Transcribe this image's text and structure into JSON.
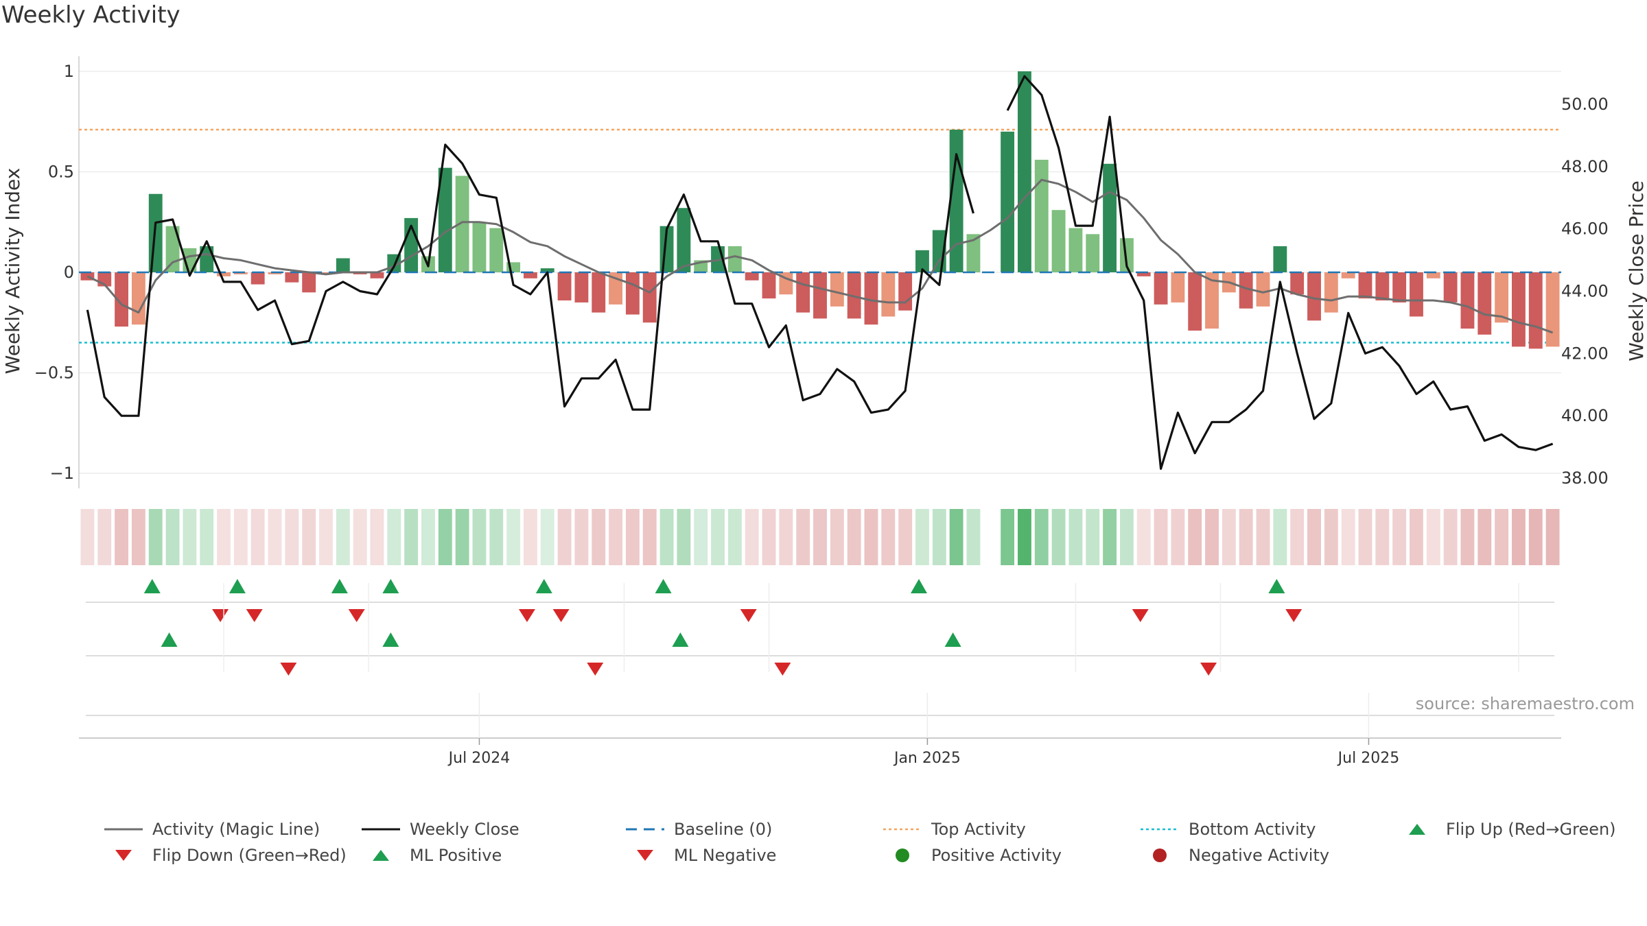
{
  "title": "Weekly Activity",
  "source": "source: sharemaestro.com",
  "colors": {
    "strong_green": "#2e8b57",
    "light_green": "#7fbf7f",
    "strong_red": "#cd5c5c",
    "light_red": "#e9967a",
    "magic_line": "#6e6e6e",
    "close_line": "#111111",
    "baseline": "#1f77b4",
    "top_line": "#f4a460",
    "bottom_line": "#17becf",
    "flip_up": "#1e9e50",
    "flip_down": "#d62728",
    "positive_dot": "#228b22",
    "negative_dot": "#b22222"
  },
  "legend": [
    {
      "label": "Activity (Magic Line)",
      "kind": "line-solid-gray"
    },
    {
      "label": "Weekly Close",
      "kind": "line-solid-black"
    },
    {
      "label": "Baseline (0)",
      "kind": "line-dash-blue"
    },
    {
      "label": "Top Activity",
      "kind": "line-dot-orange"
    },
    {
      "label": "Bottom Activity",
      "kind": "line-dot-cyan"
    },
    {
      "label": "Flip Up (Red→Green)",
      "kind": "triangle-up"
    },
    {
      "label": "Flip Down (Green→Red)",
      "kind": "triangle-down"
    },
    {
      "label": "ML Positive",
      "kind": "triangle-up"
    },
    {
      "label": "ML Negative",
      "kind": "triangle-down"
    },
    {
      "label": "Positive Activity",
      "kind": "dot-green"
    },
    {
      "label": "Negative Activity",
      "kind": "dot-red"
    }
  ],
  "chart_data": {
    "type": "bar",
    "title": "Weekly Activity",
    "ylabel": "Weekly Activity Index",
    "y2label": "Weekly Close Price",
    "ylim": [
      -1.1,
      1.0
    ],
    "y2lim": [
      37.7,
      51.6
    ],
    "yticks": [
      {
        "label": "1",
        "value": 1.0
      },
      {
        "label": "0.5",
        "value": 0.5
      },
      {
        "label": "0",
        "value": 0
      },
      {
        "label": "−0.5",
        "value": -0.5
      },
      {
        "label": "−1",
        "value": -1.0
      }
    ],
    "y2ticks": [
      {
        "label": "50.00",
        "value": 50
      },
      {
        "label": "48.00",
        "value": 48
      },
      {
        "label": "46.00",
        "value": 46
      },
      {
        "label": "44.00",
        "value": 44
      },
      {
        "label": "42.00",
        "value": 42
      },
      {
        "label": "40.00",
        "value": 40
      },
      {
        "label": "38.00",
        "value": 38
      }
    ],
    "xticks": [
      {
        "label": "Jul 2024",
        "week": 23.5
      },
      {
        "label": "Jan 2025",
        "week": 49.8
      },
      {
        "label": "Jul 2025",
        "week": 75.7
      }
    ],
    "top_activity": 0.71,
    "bottom_activity": -0.35,
    "activity": [
      -0.04,
      -0.07,
      -0.27,
      -0.26,
      0.39,
      0.23,
      0.12,
      0.13,
      -0.02,
      -0.01,
      -0.06,
      -0.01,
      -0.05,
      -0.1,
      -0.01,
      0.07,
      -0.01,
      -0.03,
      0.09,
      0.27,
      0.08,
      0.52,
      0.48,
      0.25,
      0.22,
      0.05,
      -0.03,
      0.02,
      -0.14,
      -0.15,
      -0.2,
      -0.16,
      -0.21,
      -0.25,
      0.23,
      0.32,
      0.06,
      0.13,
      0.13,
      -0.04,
      -0.13,
      -0.11,
      -0.2,
      -0.23,
      -0.17,
      -0.23,
      -0.26,
      -0.22,
      -0.19,
      0.11,
      0.21,
      0.71,
      0.19,
      null,
      0.7,
      1.0,
      0.56,
      0.31,
      0.22,
      0.19,
      0.54,
      0.17,
      -0.02,
      -0.16,
      -0.15,
      -0.29,
      -0.28,
      -0.1,
      -0.18,
      -0.17,
      0.13,
      -0.11,
      -0.24,
      -0.2,
      -0.03,
      -0.13,
      -0.14,
      -0.15,
      -0.22,
      -0.03,
      -0.15,
      -0.28,
      -0.31,
      -0.25,
      -0.37,
      -0.38,
      -0.37
    ],
    "activity_shade": [
      "strong",
      "strong",
      "strong",
      "light",
      "strong",
      "light",
      "light",
      "strong",
      "light",
      "light",
      "strong",
      "light",
      "strong",
      "strong",
      "light",
      "strong",
      "strong",
      "strong",
      "strong",
      "strong",
      "light",
      "strong",
      "light",
      "light",
      "light",
      "light",
      "strong",
      "strong",
      "strong",
      "strong",
      "strong",
      "light",
      "strong",
      "strong",
      "strong",
      "strong",
      "light",
      "strong",
      "light",
      "strong",
      "strong",
      "light",
      "strong",
      "strong",
      "light",
      "strong",
      "strong",
      "light",
      "strong",
      "strong",
      "strong",
      "strong",
      "light",
      "none",
      "strong",
      "strong",
      "light",
      "light",
      "light",
      "light",
      "strong",
      "light",
      "strong",
      "strong",
      "light",
      "strong",
      "light",
      "light",
      "strong",
      "light",
      "strong",
      "strong",
      "strong",
      "light",
      "light",
      "strong",
      "strong",
      "strong",
      "strong",
      "light",
      "strong",
      "strong",
      "strong",
      "light",
      "strong",
      "strong",
      "light"
    ],
    "magic_line": [
      -0.02,
      -0.06,
      -0.16,
      -0.2,
      -0.04,
      0.05,
      0.08,
      0.09,
      0.07,
      0.06,
      0.04,
      0.02,
      0.01,
      0.0,
      -0.01,
      0.0,
      0.0,
      0.0,
      0.03,
      0.08,
      0.13,
      0.2,
      0.25,
      0.25,
      0.24,
      0.2,
      0.15,
      0.13,
      0.08,
      0.04,
      0.0,
      -0.03,
      -0.06,
      -0.1,
      -0.02,
      0.03,
      0.05,
      0.06,
      0.08,
      0.06,
      0.01,
      -0.03,
      -0.06,
      -0.08,
      -0.1,
      -0.12,
      -0.14,
      -0.15,
      -0.15,
      -0.08,
      0.06,
      0.14,
      0.16,
      0.21,
      0.27,
      0.37,
      0.46,
      0.44,
      0.4,
      0.35,
      0.4,
      0.36,
      0.27,
      0.16,
      0.09,
      0.0,
      -0.04,
      -0.05,
      -0.08,
      -0.1,
      -0.08,
      -0.11,
      -0.13,
      -0.14,
      -0.12,
      -0.12,
      -0.13,
      -0.14,
      -0.14,
      -0.14,
      -0.15,
      -0.17,
      -0.21,
      -0.22,
      -0.25,
      -0.27,
      -0.3
    ],
    "weekly_close": [
      43.4,
      40.6,
      40.0,
      40.0,
      46.2,
      46.3,
      44.5,
      45.6,
      44.3,
      44.3,
      43.4,
      43.7,
      42.3,
      42.4,
      44.0,
      44.3,
      44.0,
      43.9,
      44.8,
      46.1,
      44.8,
      48.7,
      48.1,
      47.1,
      47.0,
      44.2,
      43.9,
      44.6,
      40.3,
      41.2,
      41.2,
      41.8,
      40.2,
      40.2,
      46.0,
      47.1,
      45.6,
      45.6,
      43.6,
      43.6,
      42.2,
      42.9,
      40.5,
      40.7,
      41.5,
      41.1,
      40.1,
      40.2,
      40.8,
      44.7,
      44.2,
      48.4,
      46.5,
      null,
      49.8,
      50.9,
      50.3,
      48.6,
      46.1,
      46.1,
      49.6,
      44.8,
      43.7,
      38.3,
      40.1,
      38.8,
      39.8,
      39.8,
      40.2,
      40.8,
      44.3,
      42.0,
      39.9,
      40.4,
      43.3,
      42.0,
      42.2,
      41.6,
      40.7,
      41.1,
      40.2,
      40.3,
      39.2,
      39.4,
      39.0,
      38.9,
      39.1
    ],
    "flip_row": [
      {
        "week": 4.3,
        "dir": "up"
      },
      {
        "week": 8.3,
        "dir": "down"
      },
      {
        "week": 9.3,
        "dir": "up"
      },
      {
        "week": 10.3,
        "dir": "down"
      },
      {
        "week": 15.3,
        "dir": "up"
      },
      {
        "week": 16.3,
        "dir": "down"
      },
      {
        "week": 18.3,
        "dir": "up"
      },
      {
        "week": 26.3,
        "dir": "down"
      },
      {
        "week": 27.3,
        "dir": "up"
      },
      {
        "week": 28.3,
        "dir": "down"
      },
      {
        "week": 34.3,
        "dir": "up"
      },
      {
        "week": 39.3,
        "dir": "down"
      },
      {
        "week": 49.3,
        "dir": "up"
      },
      {
        "week": 62.3,
        "dir": "down"
      },
      {
        "week": 70.3,
        "dir": "up"
      },
      {
        "week": 71.3,
        "dir": "down"
      }
    ],
    "ml_row": [
      {
        "week": 5.3,
        "dir": "up"
      },
      {
        "week": 12.3,
        "dir": "down"
      },
      {
        "week": 18.3,
        "dir": "up"
      },
      {
        "week": 30.3,
        "dir": "down"
      },
      {
        "week": 35.3,
        "dir": "up"
      },
      {
        "week": 41.3,
        "dir": "down"
      },
      {
        "week": 51.3,
        "dir": "up"
      },
      {
        "week": 66.3,
        "dir": "down"
      }
    ]
  }
}
